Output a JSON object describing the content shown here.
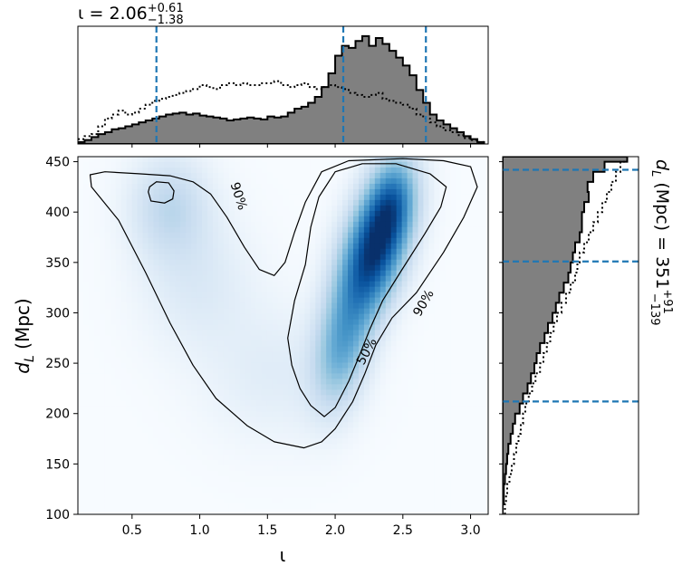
{
  "chart_data": {
    "type": "heatmap",
    "title_parts": {
      "symbol": "ι",
      "eq": " = ",
      "value": "2.06",
      "upper": "+0.61",
      "lower": "−1.38"
    },
    "xlabel": "ι",
    "ylabel_main": "d",
    "ylabel_sub": "L",
    "ylabel_unit": " (Mpc)",
    "right_label": "d_L (Mpc) = 351^{+91}_{−139}",
    "right_label_parts": {
      "main": "d",
      "sub": "L",
      "rest": " (Mpc) = 351",
      "upper": "+91",
      "lower": "−139"
    },
    "xlim": [
      0.1,
      3.13
    ],
    "ylim": [
      100,
      455
    ],
    "x_ticks": [
      0.5,
      1.0,
      1.5,
      2.0,
      2.5,
      3.0
    ],
    "x_tick_labels": [
      "0.5",
      "1.0",
      "1.5",
      "2.0",
      "2.5",
      "3.0"
    ],
    "y_ticks": [
      100,
      150,
      200,
      250,
      300,
      350,
      400,
      450
    ],
    "y_tick_labels": [
      "100",
      "150",
      "200",
      "250",
      "300",
      "350",
      "400",
      "450"
    ],
    "colormap": "Blues",
    "contour_levels": [
      "90%",
      "50%"
    ],
    "density_components": [
      {
        "x": 2.28,
        "y": 360,
        "sx": 0.17,
        "sy": 45,
        "rho": 0.45,
        "w": 1.0
      },
      {
        "x": 2.42,
        "y": 410,
        "sx": 0.12,
        "sy": 30,
        "rho": 0.2,
        "w": 0.45
      },
      {
        "x": 2.05,
        "y": 265,
        "sx": 0.14,
        "sy": 40,
        "rho": 0.3,
        "w": 0.42
      },
      {
        "x": 0.78,
        "y": 405,
        "sx": 0.2,
        "sy": 35,
        "rho": 0.0,
        "w": 0.22
      },
      {
        "x": 0.98,
        "y": 330,
        "sx": 0.28,
        "sy": 45,
        "rho": 0.0,
        "w": 0.1
      },
      {
        "x": 1.55,
        "y": 240,
        "sx": 0.35,
        "sy": 45,
        "rho": 0.0,
        "w": 0.08
      }
    ],
    "contour_90_outer": [
      [
        1.77,
        166
      ],
      [
        1.55,
        172
      ],
      [
        1.35,
        188
      ],
      [
        1.12,
        215
      ],
      [
        0.95,
        248
      ],
      [
        0.78,
        290
      ],
      [
        0.6,
        340
      ],
      [
        0.4,
        392
      ],
      [
        0.2,
        425
      ],
      [
        0.19,
        437
      ],
      [
        0.3,
        440
      ],
      [
        0.55,
        438
      ],
      [
        0.78,
        436
      ],
      [
        0.95,
        430
      ],
      [
        1.08,
        418
      ],
      [
        1.2,
        395
      ],
      [
        1.33,
        365
      ],
      [
        1.44,
        343
      ],
      [
        1.55,
        337
      ],
      [
        1.63,
        350
      ],
      [
        1.7,
        380
      ],
      [
        1.78,
        410
      ],
      [
        1.9,
        440
      ],
      [
        2.1,
        451
      ],
      [
        2.5,
        453
      ],
      [
        2.8,
        451
      ],
      [
        3.0,
        445
      ],
      [
        3.05,
        425
      ],
      [
        2.95,
        395
      ],
      [
        2.8,
        360
      ],
      [
        2.6,
        320
      ],
      [
        2.42,
        295
      ],
      [
        2.3,
        268
      ],
      [
        2.22,
        240
      ],
      [
        2.13,
        212
      ],
      [
        2.0,
        185
      ],
      [
        1.9,
        172
      ]
    ],
    "contour_90_inner": [
      [
        0.62,
        420
      ],
      [
        0.64,
        411
      ],
      [
        0.74,
        409
      ],
      [
        0.8,
        413
      ],
      [
        0.81,
        421
      ],
      [
        0.77,
        429
      ],
      [
        0.68,
        430
      ],
      [
        0.63,
        425
      ]
    ],
    "contour_50": [
      [
        1.92,
        197
      ],
      [
        1.82,
        208
      ],
      [
        1.74,
        225
      ],
      [
        1.68,
        248
      ],
      [
        1.65,
        275
      ],
      [
        1.7,
        312
      ],
      [
        1.78,
        348
      ],
      [
        1.82,
        385
      ],
      [
        1.88,
        415
      ],
      [
        2.0,
        440
      ],
      [
        2.2,
        448
      ],
      [
        2.45,
        448
      ],
      [
        2.7,
        438
      ],
      [
        2.82,
        425
      ],
      [
        2.78,
        405
      ],
      [
        2.66,
        378
      ],
      [
        2.48,
        340
      ],
      [
        2.35,
        312
      ],
      [
        2.26,
        285
      ],
      [
        2.18,
        258
      ],
      [
        2.1,
        232
      ],
      [
        2.0,
        206
      ]
    ],
    "iota_markers": [
      0.68,
      2.06,
      2.67
    ],
    "iota_hist_bins": [
      0.1,
      0.15,
      0.2,
      0.25,
      0.3,
      0.35,
      0.4,
      0.45,
      0.5,
      0.55,
      0.6,
      0.65,
      0.7,
      0.75,
      0.8,
      0.85,
      0.9,
      0.95,
      1.0,
      1.05,
      1.1,
      1.15,
      1.2,
      1.25,
      1.3,
      1.35,
      1.4,
      1.45,
      1.5,
      1.55,
      1.6,
      1.65,
      1.7,
      1.75,
      1.8,
      1.85,
      1.9,
      1.95,
      2.0,
      2.05,
      2.1,
      2.15,
      2.2,
      2.25,
      2.3,
      2.35,
      2.4,
      2.45,
      2.5,
      2.55,
      2.6,
      2.65,
      2.7,
      2.75,
      2.8,
      2.85,
      2.9,
      2.95,
      3.0,
      3.05,
      3.1
    ],
    "iota_hist_counts": [
      2,
      4,
      7,
      10,
      12,
      15,
      16,
      18,
      20,
      22,
      24,
      26,
      28,
      30,
      31,
      32,
      30,
      31,
      29,
      28,
      27,
      26,
      24,
      25,
      26,
      27,
      26,
      25,
      28,
      27,
      28,
      32,
      36,
      38,
      42,
      48,
      58,
      72,
      90,
      100,
      98,
      105,
      110,
      100,
      108,
      102,
      95,
      88,
      80,
      70,
      55,
      42,
      30,
      24,
      20,
      16,
      12,
      8,
      5,
      2
    ],
    "iota_prior_counts": [
      5,
      8,
      10,
      18,
      26,
      30,
      34,
      30,
      32,
      36,
      40,
      44,
      46,
      48,
      50,
      52,
      54,
      56,
      60,
      58,
      56,
      60,
      62,
      60,
      62,
      60,
      60,
      62,
      62,
      64,
      60,
      58,
      60,
      62,
      58,
      56,
      58,
      60,
      58,
      56,
      52,
      50,
      48,
      50,
      52,
      46,
      44,
      42,
      40,
      36,
      30,
      26,
      22,
      18,
      14,
      12,
      9,
      6,
      4,
      2
    ],
    "iota_hist_max": 120,
    "dl_markers": [
      212,
      351,
      442
    ],
    "dl_hist_bins": [
      100,
      110,
      120,
      130,
      140,
      150,
      160,
      170,
      180,
      190,
      200,
      210,
      220,
      230,
      240,
      250,
      260,
      270,
      280,
      290,
      300,
      310,
      320,
      330,
      340,
      350,
      360,
      370,
      380,
      390,
      400,
      410,
      420,
      430,
      440,
      450,
      455
    ],
    "dl_hist_counts": [
      0,
      1,
      1,
      2,
      3,
      4,
      5,
      7,
      9,
      11,
      15,
      18,
      22,
      25,
      28,
      30,
      33,
      37,
      40,
      44,
      47,
      50,
      54,
      58,
      60,
      62,
      64,
      68,
      70,
      70,
      72,
      76,
      75,
      80,
      90,
      110
    ],
    "dl_prior_counts": [
      2,
      3,
      4,
      6,
      8,
      10,
      12,
      14,
      16,
      18,
      20,
      23,
      26,
      29,
      33,
      36,
      39,
      42,
      45,
      48,
      52,
      56,
      60,
      64,
      66,
      68,
      72,
      76,
      80,
      84,
      88,
      92,
      96,
      100,
      104,
      110
    ],
    "dl_hist_max": 120
  }
}
